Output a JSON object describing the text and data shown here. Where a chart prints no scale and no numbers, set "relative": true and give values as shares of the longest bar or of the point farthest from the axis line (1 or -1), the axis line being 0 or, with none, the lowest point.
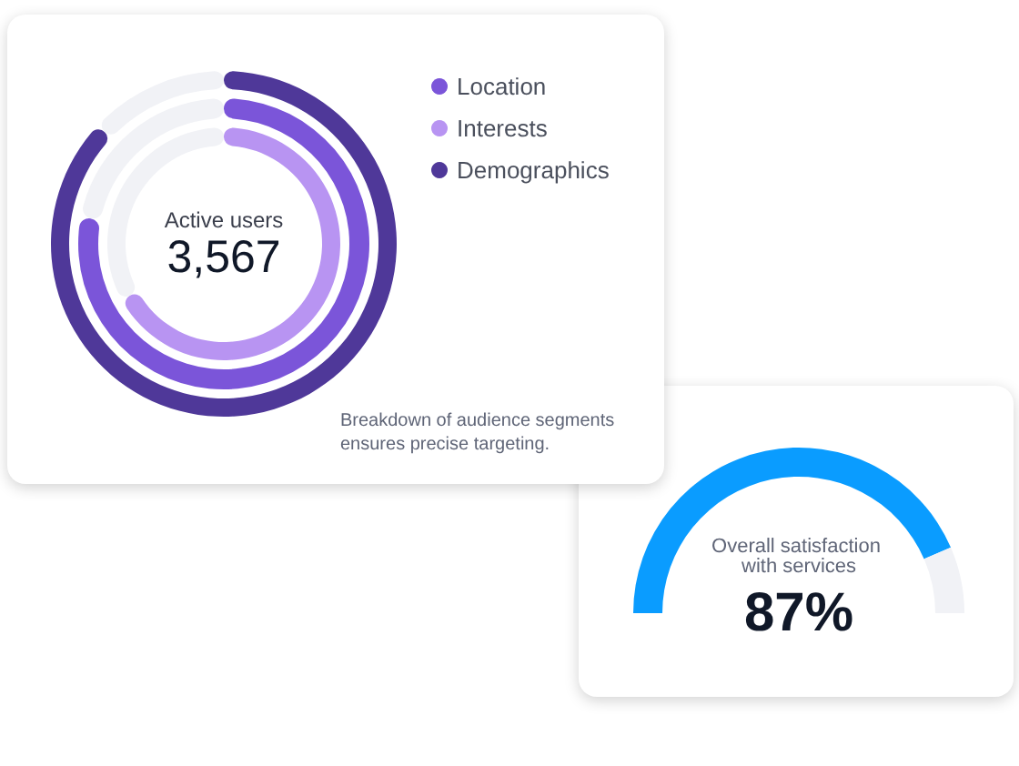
{
  "chart_data": [
    {
      "type": "donut",
      "relative": true,
      "categories": [
        null,
        null
      ],
      "legend": "top right",
      "series": [
        {
          "name": "Location",
          "colors": [
            "#7b55d9",
            "#f1f2f6"
          ],
          "values": [
            78,
            22
          ]
        },
        {
          "name": "Interests",
          "colors": [
            "#b894f2",
            "#f1f2f6"
          ],
          "values": [
            67,
            33
          ]
        },
        {
          "name": "Demographics",
          "colors": [
            "#4f3899",
            "#f1f2f6"
          ],
          "values": [
            87,
            13
          ]
        }
      ],
      "annotations": [
        "Active users",
        "3,567",
        "Breakdown of audience segments ensures precise targeting."
      ]
    },
    {
      "type": "donut",
      "title": "Overall satisfaction with services",
      "categories": [
        null,
        null
      ],
      "values": [
        87,
        13
      ],
      "colors": [
        "#0a9cff",
        "#f1f2f6"
      ],
      "value_labels": [
        "87%",
        null
      ]
    }
  ]
}
